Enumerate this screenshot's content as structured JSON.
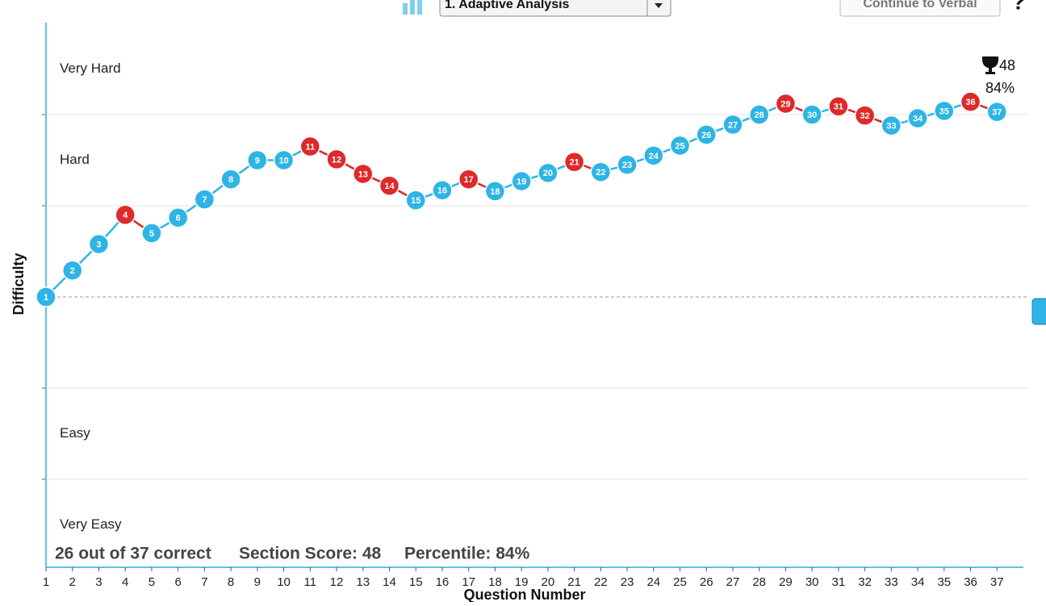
{
  "chart_data": {
    "type": "line",
    "toolbar": {
      "dropdown": "1. Adaptive Analysis",
      "button": "Continue to Verbal",
      "help": "?"
    },
    "y_label": "Difficulty",
    "x_label": "Question Number",
    "x": [
      1,
      2,
      3,
      4,
      5,
      6,
      7,
      8,
      9,
      10,
      11,
      12,
      13,
      14,
      15,
      16,
      17,
      18,
      19,
      20,
      21,
      22,
      23,
      24,
      25,
      26,
      27,
      28,
      29,
      30,
      31,
      32,
      33,
      34,
      35,
      36,
      37
    ],
    "xlim": [
      1,
      38
    ],
    "values": [
      0,
      0.29,
      0.58,
      0.9,
      0.7,
      0.87,
      1.07,
      1.29,
      1.5,
      1.5,
      1.65,
      1.51,
      1.35,
      1.22,
      1.06,
      1.17,
      1.29,
      1.16,
      1.27,
      1.36,
      1.48,
      1.37,
      1.45,
      1.55,
      1.66,
      1.78,
      1.89,
      2.0,
      2.12,
      2.0,
      2.09,
      1.99,
      1.88,
      1.96,
      2.04,
      2.14,
      2.03
    ],
    "correct": [
      true,
      true,
      true,
      false,
      true,
      true,
      true,
      true,
      true,
      true,
      false,
      false,
      false,
      false,
      true,
      true,
      false,
      true,
      true,
      true,
      false,
      true,
      true,
      true,
      true,
      true,
      true,
      true,
      false,
      true,
      false,
      false,
      true,
      true,
      true,
      false,
      true
    ],
    "colors": {
      "correct": "#2fb4e6",
      "incorrect": "#dd2a2a"
    },
    "ylim": [
      -3,
      3
    ],
    "yticks": [
      {
        "value": 2.5,
        "label": "Very Hard"
      },
      {
        "value": 1.5,
        "label": "Hard"
      },
      {
        "value": -1.5,
        "label": "Easy"
      },
      {
        "value": -2.5,
        "label": "Very Easy"
      }
    ],
    "grid_lines": [
      2,
      1,
      -1,
      -2
    ],
    "baseline": 0,
    "final_score": "48",
    "final_percentile": "84%",
    "summary": "26 out of 37 correct",
    "score_text": "Section Score: 48",
    "percentile_text": "Percentile: 84%"
  }
}
